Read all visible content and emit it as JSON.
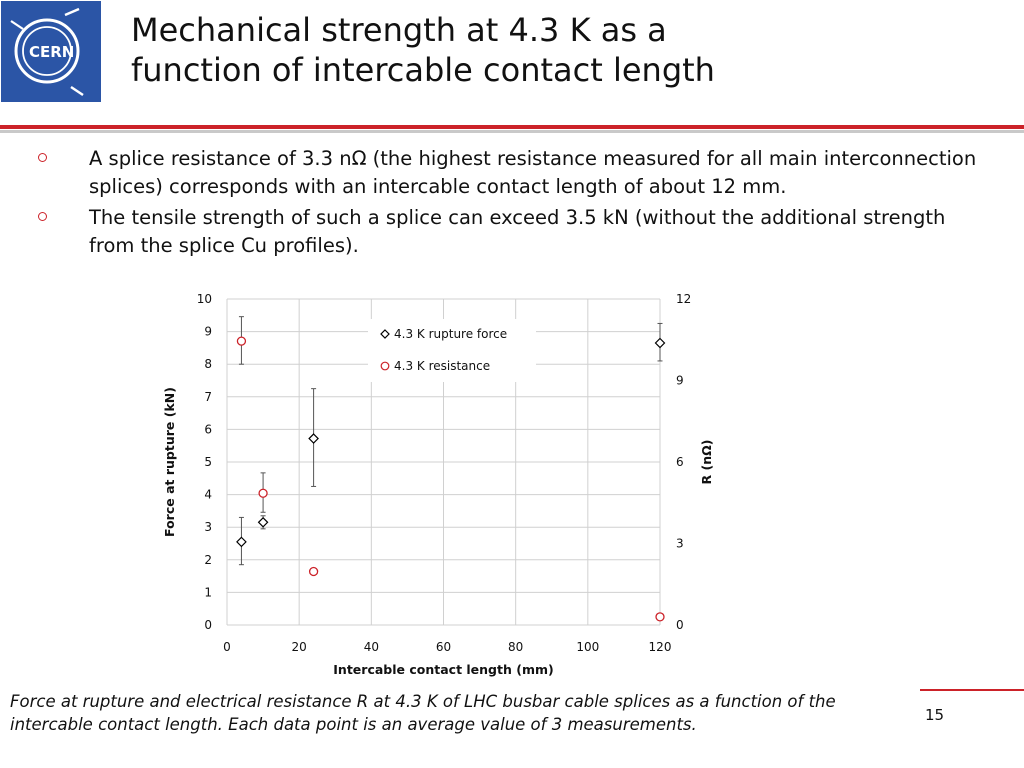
{
  "slide": {
    "logo_text": "CERN",
    "title_line1": "Mechanical strength at 4.3 K as a",
    "title_line2": "function of intercable contact length",
    "bullets": [
      "A splice resistance of 3.3 nΩ (the highest resistance measured for all main interconnection splices) corresponds with an intercable contact length of about 12 mm.",
      "The tensile strength of such a splice can exceed 3.5 kN (without the additional strength from the splice Cu profiles)."
    ],
    "caption": "Force at rupture and electrical resistance R at 4.3 K of LHC busbar cable splices as a function of the intercable contact length. Each data point is an average value of 3 measurements.",
    "page_number": "15",
    "colors": {
      "accent_red": "#cc2229",
      "logo_blue": "#2b55a6"
    }
  },
  "chart_data": {
    "type": "scatter",
    "title": "",
    "xlabel": "Intercable contact length (mm)",
    "ylabel": "Force at rupture (kN)",
    "y2label": "R (nΩ)",
    "xlim": [
      0,
      120
    ],
    "ylim": [
      0,
      10
    ],
    "y2lim": [
      0,
      12
    ],
    "x_ticks": [
      0,
      20,
      40,
      60,
      80,
      100,
      120
    ],
    "y_ticks": [
      0,
      1,
      2,
      3,
      4,
      5,
      6,
      7,
      8,
      9,
      10
    ],
    "y2_ticks": [
      0,
      3,
      6,
      9,
      12
    ],
    "grid": true,
    "legend_position": "top-center",
    "series": [
      {
        "name": "4.3 K rupture force",
        "axis": "left",
        "marker": "diamond",
        "color": "#000000",
        "points": [
          {
            "x": 4,
            "y": 2.55,
            "err_lo": 1.85,
            "err_hi": 3.3
          },
          {
            "x": 10,
            "y": 3.15,
            "err_lo": 2.95,
            "err_hi": 3.35
          },
          {
            "x": 24,
            "y": 5.72,
            "err_lo": 4.25,
            "err_hi": 7.25
          },
          {
            "x": 120,
            "y": 8.65,
            "err_lo": 8.1,
            "err_hi": 9.25
          }
        ]
      },
      {
        "name": "4.3 K resistance",
        "axis": "right",
        "marker": "circle",
        "color": "#cc2229",
        "points": [
          {
            "x": 4,
            "y": 10.45,
            "err_lo": 9.6,
            "err_hi": 11.35
          },
          {
            "x": 10,
            "y": 4.85,
            "err_lo": 4.15,
            "err_hi": 5.6
          },
          {
            "x": 24,
            "y": 1.97,
            "err_lo": 1.9,
            "err_hi": 2.05
          },
          {
            "x": 120,
            "y": 0.3,
            "err_lo": 0.3,
            "err_hi": 0.3
          }
        ]
      }
    ]
  }
}
